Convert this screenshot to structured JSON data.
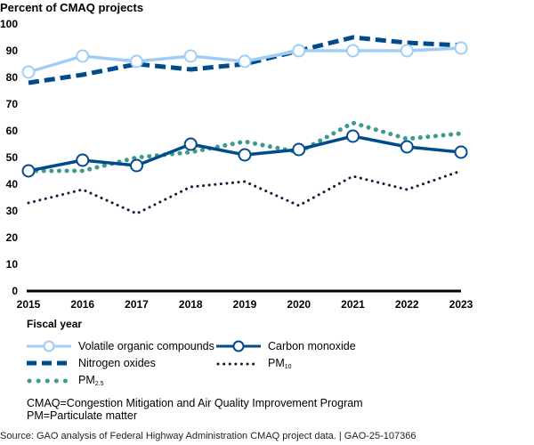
{
  "chart_data": {
    "type": "line",
    "title": "Percent of CMAQ projects",
    "xlabel": "Fiscal year",
    "ylabel": "Percent of CMAQ projects",
    "ylim": [
      0,
      100
    ],
    "yticks": [
      0,
      10,
      20,
      30,
      40,
      50,
      60,
      70,
      80,
      90,
      100
    ],
    "x": [
      "2015",
      "2016",
      "2017",
      "2018",
      "2019",
      "2020",
      "2021",
      "2022",
      "2023"
    ],
    "grid": false,
    "legend_position": "bottom",
    "series": [
      {
        "key": "voc",
        "name": "Volatile organic compounds",
        "sub": "",
        "color": "#9fcdf5",
        "style": "solid-marker",
        "values": [
          82,
          88,
          86,
          88,
          86,
          90,
          90,
          90,
          91
        ]
      },
      {
        "key": "co",
        "name": "Carbon monoxide",
        "sub": "",
        "color": "#004b8d",
        "style": "solid-marker",
        "values": [
          45,
          49,
          47,
          55,
          51,
          53,
          58,
          54,
          52
        ]
      },
      {
        "key": "nox",
        "name": "Nitrogen oxides",
        "sub": "",
        "color": "#004b8d",
        "style": "dashed",
        "values": [
          78,
          81,
          85,
          83,
          85,
          90,
          95,
          93,
          92
        ]
      },
      {
        "key": "pm10",
        "name": "PM",
        "sub": "10",
        "color": "#2b0f3a",
        "style": "dotted-small",
        "values": [
          33,
          38,
          29,
          39,
          41,
          32,
          43,
          38,
          45
        ]
      },
      {
        "key": "pm25",
        "name": "PM",
        "sub": "2.5",
        "color": "#3f9a8e",
        "style": "dotted-large",
        "values": [
          45,
          45,
          50,
          52,
          56,
          52,
          63,
          57,
          59
        ]
      }
    ]
  },
  "notes": {
    "line1": "CMAQ=Congestion Mitigation and Air Quality Improvement Program",
    "line2": "PM=Particulate matter"
  },
  "source": "Source: GAO analysis of Federal Highway Administration CMAQ project data.  |  GAO-25-107366"
}
